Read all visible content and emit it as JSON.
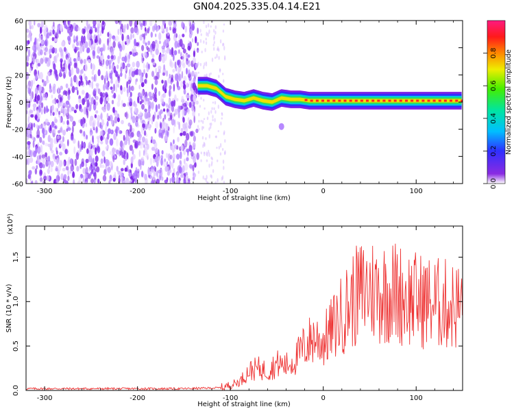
{
  "title": "GN04.2025.335.04.14.E21",
  "chart_data": [
    {
      "type": "heatmap",
      "xlabel": "Height of straight line (km)",
      "ylabel": "Frequency (Hz)",
      "xlim": [
        -320,
        150
      ],
      "ylim": [
        -60,
        60
      ],
      "xticks": [
        -300,
        -200,
        -100,
        0,
        100
      ],
      "yticks": [
        -60,
        -40,
        -20,
        0,
        20,
        40,
        60
      ],
      "colorbar": {
        "label": "Normalized spectral amplitude",
        "range": [
          0,
          1
        ],
        "ticks": [
          "0.0",
          "0.2",
          "0.4",
          "0.6",
          "0.8"
        ]
      },
      "ridge": {
        "x": [
          -135,
          -125,
          -115,
          -105,
          -95,
          -85,
          -75,
          -65,
          -55,
          -45,
          -35,
          -25,
          -15,
          -5,
          5,
          25,
          50,
          75,
          100,
          125,
          150
        ],
        "frequency": [
          12,
          12,
          10,
          4,
          2,
          1,
          3,
          1,
          0,
          3,
          2,
          2,
          1,
          1,
          1,
          1,
          1,
          1,
          1,
          1,
          1
        ]
      }
    },
    {
      "type": "line",
      "xlabel": "Height of straight line (km)",
      "ylabel": "SNR (10 * v/v)",
      "y_multiplier": "(x10⁴)",
      "xlim": [
        -320,
        150
      ],
      "ylim": [
        0,
        1.85
      ],
      "xticks": [
        -300,
        -200,
        -100,
        0,
        100
      ],
      "yticks": [
        "0.0",
        "0.5",
        "1.0",
        "1.5"
      ],
      "series": [
        {
          "color": "#ee3333",
          "x": [
            -320,
            -150,
            -110,
            -100,
            -90,
            -80,
            -70,
            -60,
            -50,
            -40,
            -30,
            -20,
            -10,
            0,
            10,
            20,
            30,
            40,
            50,
            60,
            70,
            80,
            90,
            100,
            110,
            120,
            130,
            140,
            150
          ],
          "values": [
            0.02,
            0.02,
            0.03,
            0.06,
            0.1,
            0.22,
            0.25,
            0.22,
            0.3,
            0.28,
            0.35,
            0.5,
            0.6,
            0.55,
            0.7,
            0.85,
            1.0,
            1.1,
            1.15,
            1.1,
            1.12,
            1.1,
            1.05,
            1.02,
            1.0,
            0.98,
            0.97,
            0.95,
            0.95
          ]
        }
      ]
    }
  ]
}
